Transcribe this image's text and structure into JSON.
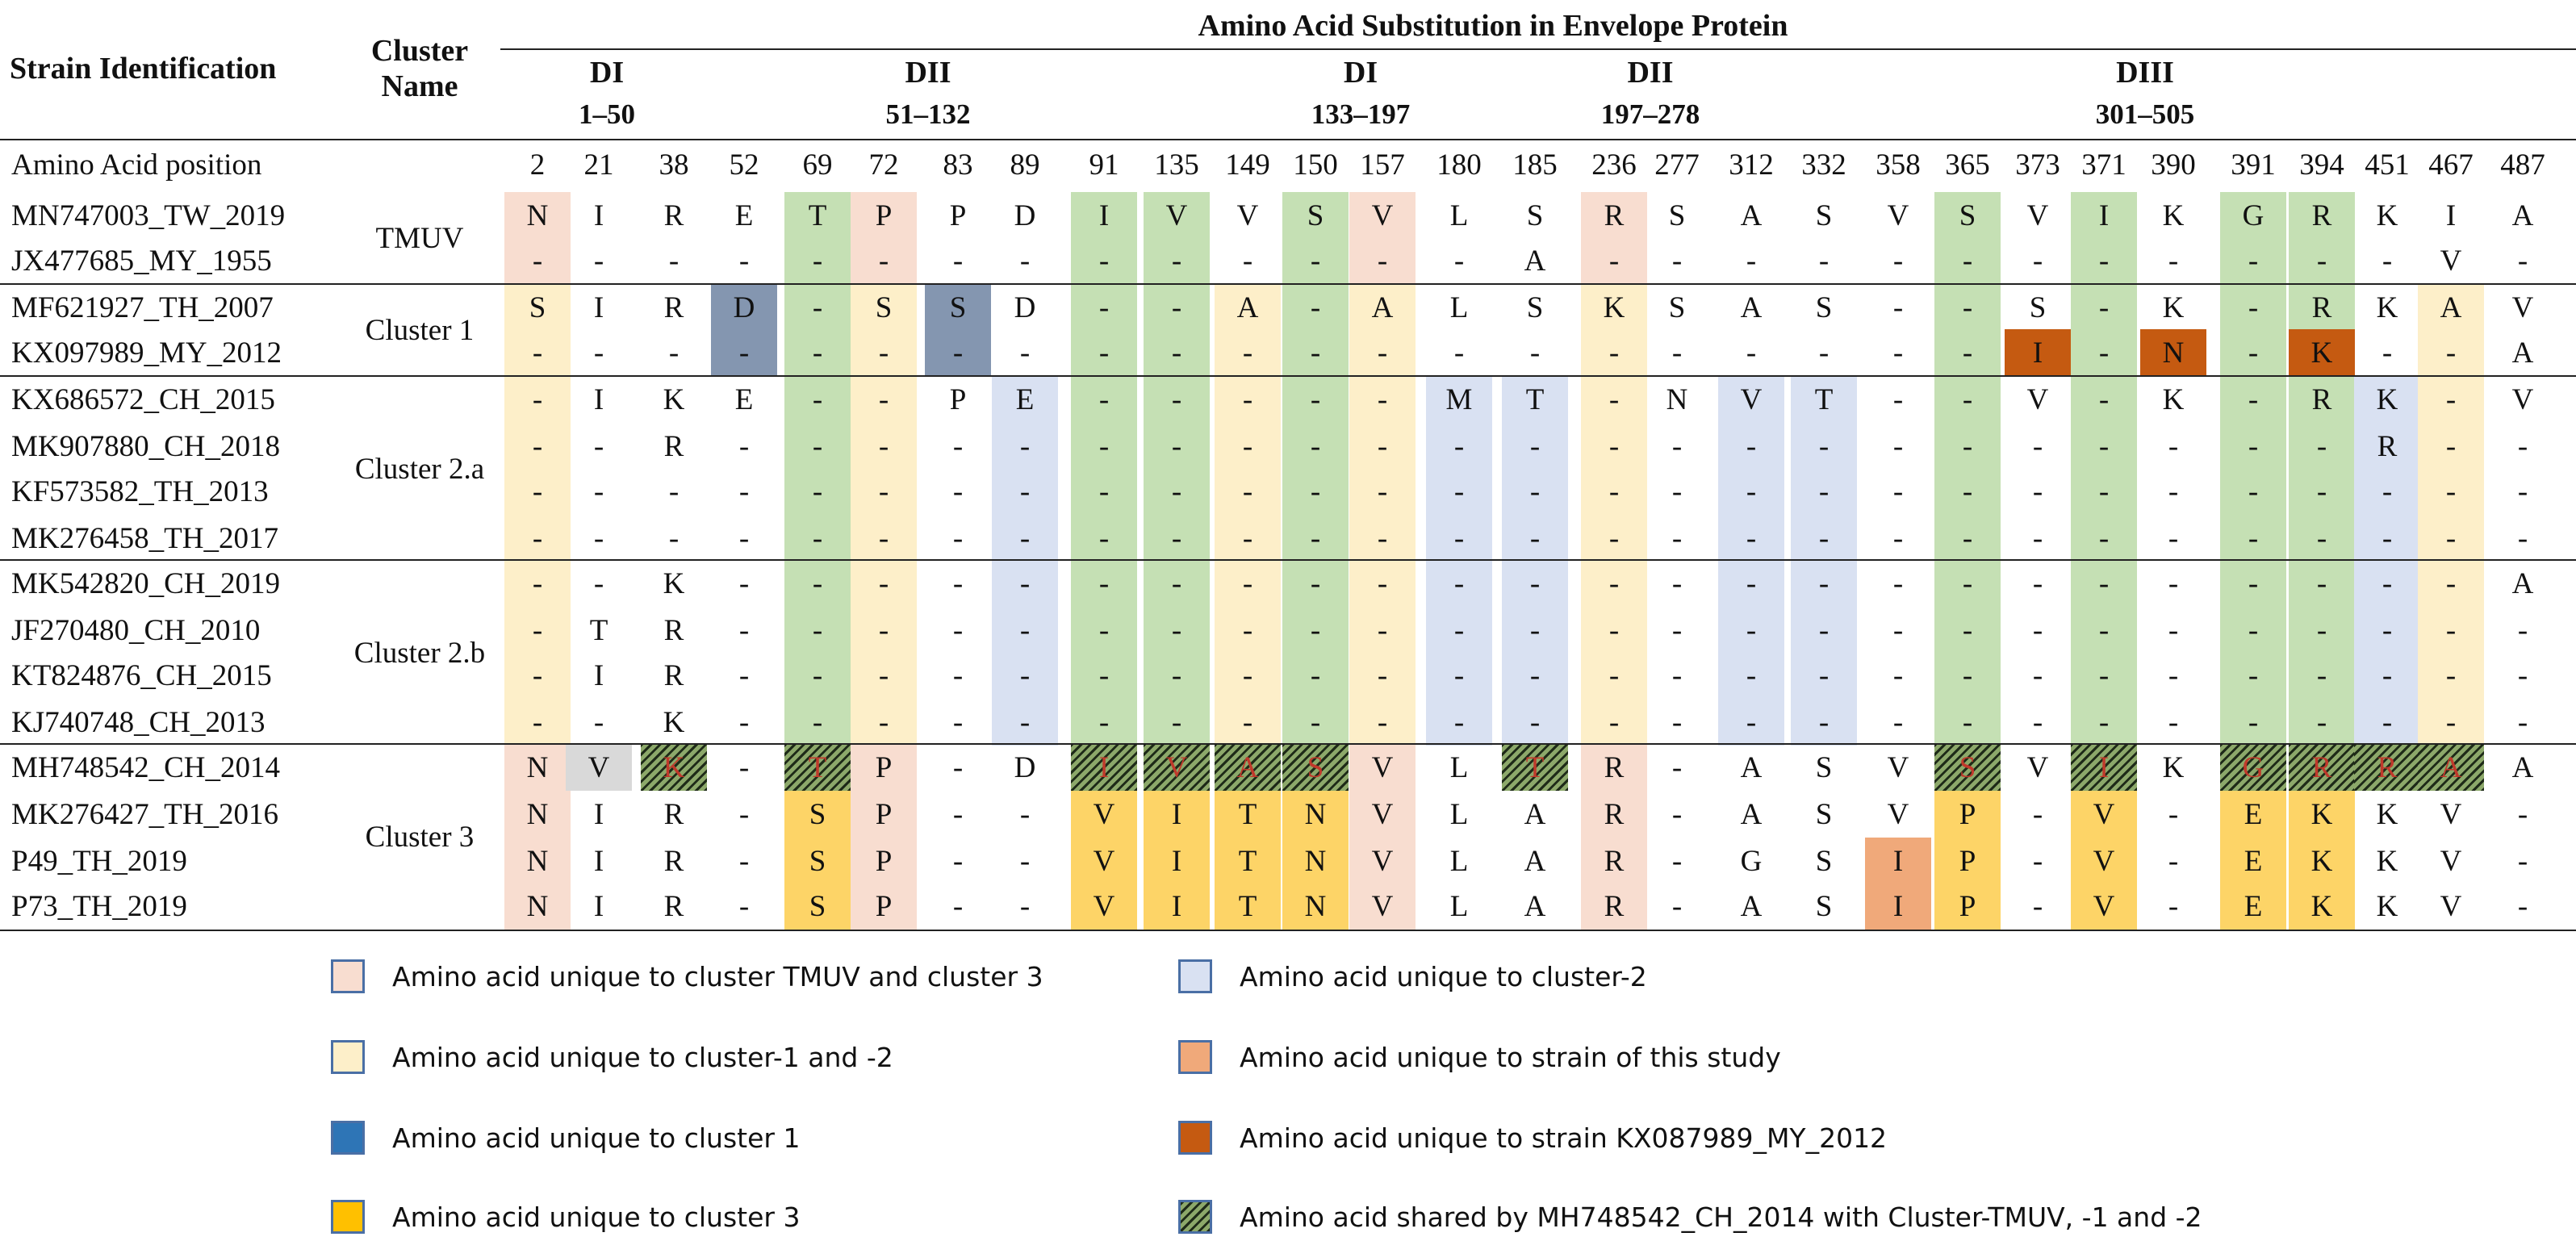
{
  "header": {
    "strain_id": "Strain Identification",
    "cluster_name_1": "Cluster",
    "cluster_name_2": "Name",
    "title": "Amino Acid Substitution in Envelope Protein",
    "aa_position_label": "Amino Acid position",
    "domains": [
      {
        "name": "DI",
        "range": "1–50"
      },
      {
        "name": "DII",
        "range": "51–132"
      },
      {
        "name": "DI",
        "range": "133–197"
      },
      {
        "name": "DII",
        "range": "197–278"
      },
      {
        "name": "DIII",
        "range": "301–505"
      }
    ]
  },
  "positions": [
    "2",
    "21",
    "38",
    "52",
    "69",
    "72",
    "83",
    "89",
    "91",
    "135",
    "149",
    "150",
    "157",
    "180",
    "185",
    "236",
    "277",
    "312",
    "332",
    "358",
    "365",
    "373",
    "371",
    "390",
    "391",
    "394",
    "451",
    "467",
    "487"
  ],
  "clusters": [
    {
      "name": "TMUV",
      "rows": [
        0,
        1
      ]
    },
    {
      "name": "Cluster 1",
      "rows": [
        2,
        3
      ]
    },
    {
      "name": "Cluster 2.a",
      "rows": [
        4,
        5,
        6,
        7
      ]
    },
    {
      "name": "Cluster 2.b",
      "rows": [
        8,
        9,
        10,
        11
      ]
    },
    {
      "name": "Cluster 3",
      "rows": [
        12,
        13,
        14,
        15
      ]
    }
  ],
  "rows": [
    {
      "strain": "MN747003_TW_2019",
      "values": [
        "N",
        "I",
        "R",
        "E",
        "T",
        "P",
        "P",
        "D",
        "I",
        "V",
        "V",
        "S",
        "V",
        "L",
        "S",
        "R",
        "S",
        "A",
        "S",
        "V",
        "S",
        "V",
        "I",
        "K",
        "G",
        "R",
        "K",
        "I",
        "A"
      ]
    },
    {
      "strain": "JX477685_MY_1955",
      "values": [
        "-",
        "-",
        "-",
        "-",
        "-",
        "-",
        "-",
        "-",
        "-",
        "-",
        "-",
        "-",
        "-",
        "-",
        "A",
        "-",
        "-",
        "-",
        "-",
        "-",
        "-",
        "-",
        "-",
        "-",
        "-",
        "-",
        "-",
        "V",
        "-"
      ]
    },
    {
      "strain": "MF621927_TH_2007",
      "values": [
        "S",
        "I",
        "R",
        "D",
        "-",
        "S",
        "S",
        "D",
        "-",
        "-",
        "A",
        "-",
        "A",
        "L",
        "S",
        "K",
        "S",
        "A",
        "S",
        "-",
        "-",
        "S",
        "-",
        "K",
        "-",
        "R",
        "K",
        "A",
        "V"
      ]
    },
    {
      "strain": "KX097989_MY_2012",
      "values": [
        "-",
        "-",
        "-",
        "-",
        "-",
        "-",
        "-",
        "-",
        "-",
        "-",
        "-",
        "-",
        "-",
        "-",
        "-",
        "-",
        "-",
        "-",
        "-",
        "-",
        "-",
        "I",
        "-",
        "N",
        "-",
        "K",
        "-",
        "-",
        "A"
      ]
    },
    {
      "strain": "KX686572_CH_2015",
      "values": [
        "-",
        "I",
        "K",
        "E",
        "-",
        "-",
        "P",
        "E",
        "-",
        "-",
        "-",
        "-",
        "-",
        "M",
        "T",
        "-",
        "N",
        "V",
        "T",
        "-",
        "-",
        "V",
        "-",
        "K",
        "-",
        "R",
        "K",
        "-",
        "V"
      ]
    },
    {
      "strain": "MK907880_CH_2018",
      "values": [
        "-",
        "-",
        "R",
        "-",
        "-",
        "-",
        "-",
        "-",
        "-",
        "-",
        "-",
        "-",
        "-",
        "-",
        "-",
        "-",
        "-",
        "-",
        "-",
        "-",
        "-",
        "-",
        "-",
        "-",
        "-",
        "-",
        "R",
        "-",
        "-"
      ]
    },
    {
      "strain": "KF573582_TH_2013",
      "values": [
        "-",
        "-",
        "-",
        "-",
        "-",
        "-",
        "-",
        "-",
        "-",
        "-",
        "-",
        "-",
        "-",
        "-",
        "-",
        "-",
        "-",
        "-",
        "-",
        "-",
        "-",
        "-",
        "-",
        "-",
        "-",
        "-",
        "-",
        "-",
        "-"
      ]
    },
    {
      "strain": "MK276458_TH_2017",
      "values": [
        "-",
        "-",
        "-",
        "-",
        "-",
        "-",
        "-",
        "-",
        "-",
        "-",
        "-",
        "-",
        "-",
        "-",
        "-",
        "-",
        "-",
        "-",
        "-",
        "-",
        "-",
        "-",
        "-",
        "-",
        "-",
        "-",
        "-",
        "-",
        "-"
      ]
    },
    {
      "strain": "MK542820_CH_2019",
      "values": [
        "-",
        "-",
        "K",
        "-",
        "-",
        "-",
        "-",
        "-",
        "-",
        "-",
        "-",
        "-",
        "-",
        "-",
        "-",
        "-",
        "-",
        "-",
        "-",
        "-",
        "-",
        "-",
        "-",
        "-",
        "-",
        "-",
        "-",
        "-",
        "A"
      ]
    },
    {
      "strain": "JF270480_CH_2010",
      "values": [
        "-",
        "T",
        "R",
        "-",
        "-",
        "-",
        "-",
        "-",
        "-",
        "-",
        "-",
        "-",
        "-",
        "-",
        "-",
        "-",
        "-",
        "-",
        "-",
        "-",
        "-",
        "-",
        "-",
        "-",
        "-",
        "-",
        "-",
        "-",
        "-"
      ]
    },
    {
      "strain": "KT824876_CH_2015",
      "values": [
        "-",
        "I",
        "R",
        "-",
        "-",
        "-",
        "-",
        "-",
        "-",
        "-",
        "-",
        "-",
        "-",
        "-",
        "-",
        "-",
        "-",
        "-",
        "-",
        "-",
        "-",
        "-",
        "-",
        "-",
        "-",
        "-",
        "-",
        "-",
        "-"
      ]
    },
    {
      "strain": "KJ740748_CH_2013",
      "values": [
        "-",
        "-",
        "K",
        "-",
        "-",
        "-",
        "-",
        "-",
        "-",
        "-",
        "-",
        "-",
        "-",
        "-",
        "-",
        "-",
        "-",
        "-",
        "-",
        "-",
        "-",
        "-",
        "-",
        "-",
        "-",
        "-",
        "-",
        "-",
        "-"
      ]
    },
    {
      "strain": "MH748542_CH_2014",
      "values": [
        "N",
        "V",
        "K",
        "-",
        "T",
        "P",
        "-",
        "D",
        "I",
        "V",
        "A",
        "S",
        "V",
        "L",
        "T",
        "R",
        "-",
        "A",
        "S",
        "V",
        "S",
        "V",
        "I",
        "K",
        "G",
        "R",
        "R",
        "A",
        "A"
      ]
    },
    {
      "strain": "MK276427_TH_2016",
      "values": [
        "N",
        "I",
        "R",
        "-",
        "S",
        "P",
        "-",
        "-",
        "V",
        "I",
        "T",
        "N",
        "V",
        "L",
        "A",
        "R",
        "-",
        "A",
        "S",
        "V",
        "P",
        "-",
        "V",
        "-",
        "E",
        "K",
        "K",
        "V",
        "-"
      ]
    },
    {
      "strain": "P49_TH_2019",
      "values": [
        "N",
        "I",
        "R",
        "-",
        "S",
        "P",
        "-",
        "-",
        "V",
        "I",
        "T",
        "N",
        "V",
        "L",
        "A",
        "R",
        "-",
        "G",
        "S",
        "I",
        "P",
        "-",
        "V",
        "-",
        "E",
        "K",
        "K",
        "V",
        "-"
      ]
    },
    {
      "strain": "P73_TH_2019",
      "values": [
        "N",
        "I",
        "R",
        "-",
        "S",
        "P",
        "-",
        "-",
        "V",
        "I",
        "T",
        "N",
        "V",
        "L",
        "A",
        "R",
        "-",
        "A",
        "S",
        "I",
        "P",
        "-",
        "V",
        "-",
        "E",
        "K",
        "K",
        "V",
        "-"
      ]
    }
  ],
  "colors": {
    "tmuv_cluster3": "#f8ddd0",
    "cluster_1_2": "#fdefc9",
    "cluster_1": "#8496b0",
    "cluster_3": "#fdd467",
    "cluster_2": "#d9e1f2",
    "this_study": "#f0a97a",
    "strain_kx087989": "#c55a11",
    "green": "#c5e0b4",
    "grey": "#d9d9d9"
  },
  "legend": [
    {
      "label": "Amino acid unique to cluster TMUV and cluster 3",
      "color": "#f8ddd0",
      "hatched": false
    },
    {
      "label": "Amino acid unique to cluster-2",
      "color": "#d9e1f2",
      "hatched": false
    },
    {
      "label": "Amino acid unique to cluster-1 and -2",
      "color": "#fdefc9",
      "hatched": false
    },
    {
      "label": "Amino acid unique to strain of this study",
      "color": "#f0a97a",
      "hatched": false
    },
    {
      "label": "Amino acid unique to cluster 1",
      "color": "#2e75b6",
      "hatched": false
    },
    {
      "label": "Amino acid unique to strain KX087989_MY_2012",
      "color": "#c55a11",
      "hatched": false
    },
    {
      "label": "Amino acid unique to cluster 3",
      "color": "#ffc000",
      "hatched": false
    },
    {
      "label": "Amino acid shared by MH748542_CH_2014 with Cluster-TMUV, -1 and -2",
      "color": "#8ca86a",
      "hatched": true
    }
  ]
}
